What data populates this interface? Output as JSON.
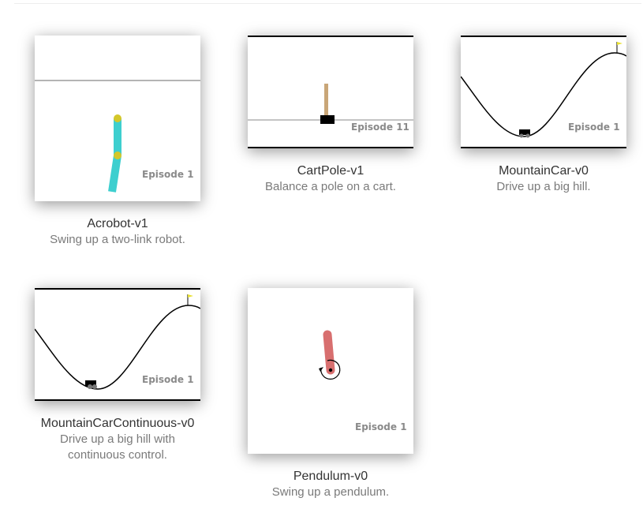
{
  "environments": [
    {
      "title": "Acrobot-v1",
      "description": "Swing up a two-link robot.",
      "episode": "Episode 1"
    },
    {
      "title": "CartPole-v1",
      "description": "Balance a pole on a cart.",
      "episode": "Episode 11"
    },
    {
      "title": "MountainCar-v0",
      "description": "Drive up a big hill.",
      "episode": "Episode 1"
    },
    {
      "title": "MountainCarContinuous-v0",
      "description": "Drive up a big hill with continuous control.",
      "episode": "Episode 1"
    },
    {
      "title": "Pendulum-v0",
      "description": "Swing up a pendulum.",
      "episode": "Episode 1"
    }
  ],
  "colors": {
    "acrobot_link": "#3ecfcf",
    "acrobot_joint": "#d4c72a",
    "pole": "#c9a678",
    "pendulum_rod": "#d86f6f",
    "flag": "#e8e030"
  }
}
